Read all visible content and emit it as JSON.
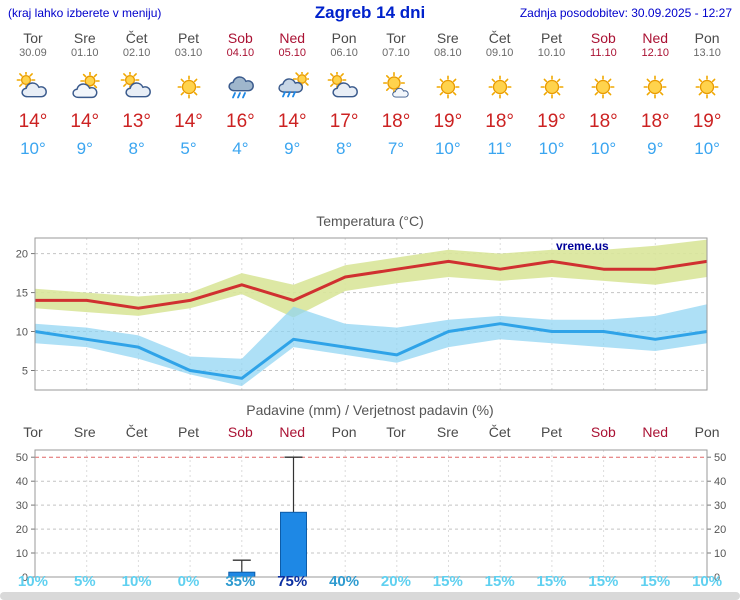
{
  "header": {
    "hint": "(kraj lahko izberete v meniju)",
    "title": "Zagreb 14 dni",
    "updated": "Zadnja posodobitev: 30.09.2025 - 12:27"
  },
  "watermark": "vreme.us",
  "colors": {
    "link_blue": "#0000CC",
    "title_blue": "#0022CC",
    "weekday_text": "#4A4A4A",
    "weekend_text": "#AA1133",
    "tmax_text": "#CC2222",
    "tmin_text": "#3AA5F0",
    "tmax_line": "#D03030",
    "tmax_band": "#D9E69A",
    "tmin_line": "#2FA3E8",
    "tmin_band": "#8FD4F2",
    "bar": "#1E88E5",
    "bar_border": "#0D5CA8",
    "whisker": "#333333",
    "grid": "#C4C4C4",
    "vgrid": "#DCDCDC",
    "grid_red": "#E06666",
    "border": "#9A9A9A",
    "axis_text": "#555555",
    "prob_low": "#5FD0F0",
    "prob_medium": "#2E9BD0",
    "prob_high": "#0B2FA0",
    "watermark": "#000099"
  },
  "days": [
    {
      "name": "Tor",
      "date": "30.09",
      "weekend": false,
      "icon": "mostly-cloudy",
      "tmax": "14°",
      "tmin": "10°"
    },
    {
      "name": "Sre",
      "date": "01.10",
      "weekend": false,
      "icon": "partly-cloudy",
      "tmax": "14°",
      "tmin": "9°"
    },
    {
      "name": "Čet",
      "date": "02.10",
      "weekend": false,
      "icon": "mostly-cloudy",
      "tmax": "13°",
      "tmin": "8°"
    },
    {
      "name": "Pet",
      "date": "03.10",
      "weekend": false,
      "icon": "sunny",
      "tmax": "14°",
      "tmin": "5°"
    },
    {
      "name": "Sob",
      "date": "04.10",
      "weekend": true,
      "icon": "rain",
      "tmax": "16°",
      "tmin": "4°"
    },
    {
      "name": "Ned",
      "date": "05.10",
      "weekend": true,
      "icon": "rain-sun",
      "tmax": "14°",
      "tmin": "9°"
    },
    {
      "name": "Pon",
      "date": "06.10",
      "weekend": false,
      "icon": "mostly-cloudy",
      "tmax": "17°",
      "tmin": "8°"
    },
    {
      "name": "Tor",
      "date": "07.10",
      "weekend": false,
      "icon": "sun-small-cloud",
      "tmax": "18°",
      "tmin": "7°"
    },
    {
      "name": "Sre",
      "date": "08.10",
      "weekend": false,
      "icon": "sunny",
      "tmax": "19°",
      "tmin": "10°"
    },
    {
      "name": "Čet",
      "date": "09.10",
      "weekend": false,
      "icon": "sunny",
      "tmax": "18°",
      "tmin": "11°"
    },
    {
      "name": "Pet",
      "date": "10.10",
      "weekend": false,
      "icon": "sunny",
      "tmax": "19°",
      "tmin": "10°"
    },
    {
      "name": "Sob",
      "date": "11.10",
      "weekend": true,
      "icon": "sunny",
      "tmax": "18°",
      "tmin": "10°"
    },
    {
      "name": "Ned",
      "date": "12.10",
      "weekend": true,
      "icon": "sunny",
      "tmax": "18°",
      "tmin": "9°"
    },
    {
      "name": "Pon",
      "date": "13.10",
      "weekend": false,
      "icon": "sunny",
      "tmax": "19°",
      "tmin": "10°"
    }
  ],
  "chart_data": [
    {
      "type": "line",
      "title": "Temperatura (°C)",
      "categories": [
        "Tor",
        "Sre",
        "Čet",
        "Pet",
        "Sob",
        "Ned",
        "Pon",
        "Tor",
        "Sre",
        "Čet",
        "Pet",
        "Sob",
        "Ned",
        "Pon"
      ],
      "series": [
        {
          "name": "max",
          "values": [
            14,
            14,
            13,
            14,
            16,
            14,
            17,
            18,
            19,
            18,
            19,
            18,
            18,
            19
          ]
        },
        {
          "name": "max_range_upper",
          "values": [
            15.5,
            15,
            14.5,
            15,
            17.5,
            16,
            18.5,
            19.5,
            20.5,
            20,
            20.5,
            20.5,
            21,
            21.8
          ]
        },
        {
          "name": "max_range_lower",
          "values": [
            13,
            12.5,
            12,
            13,
            14.8,
            11.8,
            15.2,
            16.2,
            17,
            16.5,
            17,
            16.5,
            16,
            17
          ]
        },
        {
          "name": "min",
          "values": [
            10,
            9,
            8,
            5,
            4,
            9,
            8,
            7,
            10,
            11,
            10,
            10,
            9,
            10
          ]
        },
        {
          "name": "min_range_upper",
          "values": [
            11,
            10.5,
            9.5,
            6.8,
            6.5,
            13.2,
            11,
            10.5,
            11.5,
            12,
            11.5,
            11.5,
            12,
            13.5
          ]
        },
        {
          "name": "min_range_lower",
          "values": [
            8.5,
            8,
            6.5,
            4.5,
            3,
            8,
            7,
            6,
            8,
            9,
            8.5,
            8,
            7.5,
            8.5
          ]
        }
      ],
      "ylim": [
        2.5,
        22
      ],
      "yticks": [
        5,
        10,
        15,
        20
      ],
      "grid": true,
      "legend": "none"
    },
    {
      "type": "bar",
      "title": "Padavine (mm) / Verjetnost padavin (%)",
      "categories": [
        "Tor",
        "Sre",
        "Čet",
        "Pet",
        "Sob",
        "Ned",
        "Pon",
        "Tor",
        "Sre",
        "Čet",
        "Pet",
        "Sob",
        "Ned",
        "Pon"
      ],
      "values": [
        0,
        0,
        0,
        0,
        2,
        27,
        0,
        0,
        0,
        0,
        0,
        0,
        0,
        0
      ],
      "whisker_top": [
        0,
        0,
        0,
        0,
        7,
        50,
        0,
        0,
        0,
        0,
        0,
        0,
        0,
        0
      ],
      "probabilities": [
        "10%",
        "5%",
        "10%",
        "0%",
        "35%",
        "75%",
        "40%",
        "20%",
        "15%",
        "15%",
        "15%",
        "15%",
        "15%",
        "10%"
      ],
      "prob_emphasis": [
        "low",
        "low",
        "low",
        "low",
        "medium",
        "high",
        "medium",
        "low",
        "low",
        "low",
        "low",
        "low",
        "low",
        "low"
      ],
      "ylim": [
        0,
        53
      ],
      "yticks": [
        0,
        10,
        20,
        30,
        40,
        50
      ],
      "grid": true,
      "legend": "none"
    }
  ]
}
